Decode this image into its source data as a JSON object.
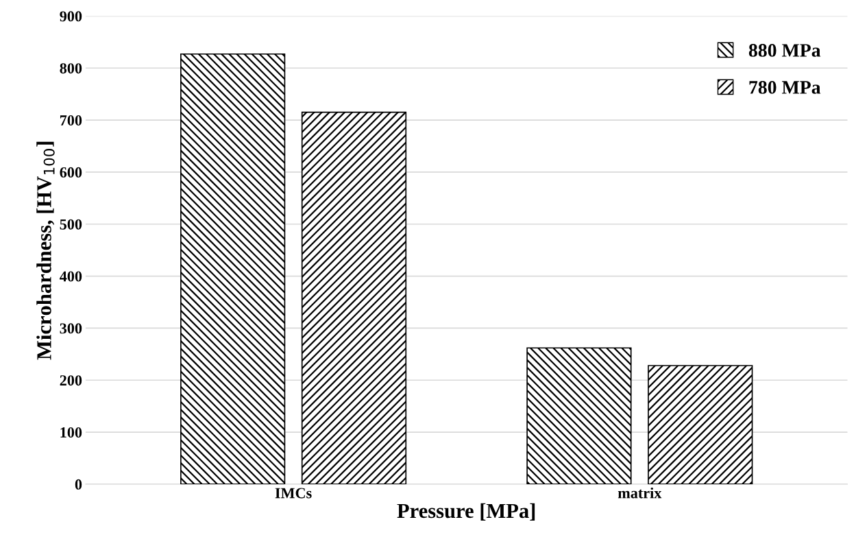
{
  "chart_data": {
    "type": "bar",
    "xlabel": "Pressure [MPa]",
    "ylabel": "Microhardness, [HV$_{100}$]",
    "categories": [
      "IMCs",
      "matrix"
    ],
    "series": [
      {
        "name": "880 MPa",
        "color": "#000000",
        "values": [
          827,
          262
        ]
      },
      {
        "name": "780 MPa",
        "color": "#000000",
        "values": [
          715,
          228
        ]
      }
    ],
    "ylim": [
      0,
      900
    ],
    "yticks": [
      0,
      100,
      200,
      300,
      400,
      500,
      600,
      700,
      800,
      900
    ],
    "grid": "y",
    "legend": "top right"
  }
}
